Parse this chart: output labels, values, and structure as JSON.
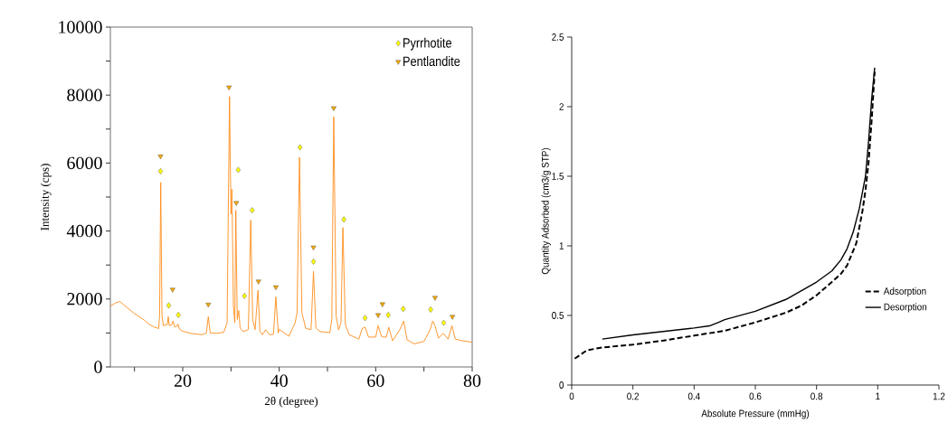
{
  "chart_data": [
    {
      "type": "line",
      "xlabel": "2θ (degree)",
      "ylabel": "Intensity (cps)",
      "xlim": [
        5,
        80
      ],
      "ylim": [
        0,
        10000
      ],
      "xticks": [
        {
          "value": 10,
          "label": null
        },
        20,
        {
          "value": 30,
          "label": null
        },
        40,
        {
          "value": 50,
          "label": null
        },
        60,
        {
          "value": 70,
          "label": null
        },
        80
      ],
      "yticks": [
        0,
        {
          "value": 1000,
          "label": null
        },
        2000,
        {
          "value": 3000,
          "label": null
        },
        4000,
        {
          "value": 5000,
          "label": null
        },
        6000,
        {
          "value": 7000,
          "label": null
        },
        8000,
        {
          "value": 9000,
          "label": null
        },
        10000
      ],
      "grid": false,
      "legend": "top right",
      "series": [
        {
          "type": "line",
          "color": "#ff8c1a",
          "marker": "none",
          "line_style": "solid",
          "x": [
            5,
            6,
            7,
            8,
            10,
            12,
            13,
            14,
            15,
            15.2,
            15.44,
            15.7,
            16,
            16.8,
            17,
            17.2,
            17.7,
            18,
            18.3,
            18.8,
            19,
            19.3,
            20,
            22,
            24,
            24.9,
            25.3,
            25.7,
            27,
            28.5,
            29.2,
            29.7,
            30.0,
            30.2,
            30.5,
            30.8,
            31.0,
            31.3,
            31.6,
            31.9,
            32.5,
            33.6,
            34.1,
            34.5,
            35.0,
            35.6,
            36.0,
            36.5,
            37.2,
            38,
            38.8,
            39.3,
            39.8,
            40,
            42,
            43.3,
            43.7,
            44.2,
            44.7,
            45.5,
            46.6,
            47.1,
            47.6,
            48.5,
            50.5,
            50.9,
            51.3,
            51.8,
            52.3,
            52.8,
            53.2,
            53.7,
            54.5,
            56.5,
            57.2,
            57.8,
            58.5,
            60,
            60.5,
            61.2,
            61.6,
            62.2,
            62.7,
            63.5,
            65,
            65.8,
            66.5,
            68,
            70,
            71.3,
            71.8,
            72.3,
            73,
            74,
            75,
            75.8,
            76.5,
            78,
            80
          ],
          "values": [
            1790,
            1880,
            1925,
            1800,
            1570,
            1380,
            1260,
            1180,
            1130,
            1500,
            5430,
            1500,
            1215,
            1250,
            1480,
            1220,
            1240,
            1350,
            1180,
            1200,
            1260,
            1120,
            1050,
            980,
            950,
            1000,
            1480,
            1000,
            990,
            1020,
            1300,
            7960,
            4500,
            5230,
            1800,
            1300,
            4610,
            1400,
            1660,
            1150,
            1040,
            1100,
            4320,
            1400,
            1100,
            2260,
            1050,
            950,
            1095,
            950,
            960,
            2060,
            1000,
            1110,
            905,
            1300,
            1600,
            6170,
            1600,
            1130,
            1100,
            2810,
            1150,
            1040,
            1010,
            1400,
            7360,
            1500,
            1090,
            1300,
            4100,
            1250,
            950,
            820,
            1130,
            1170,
            880,
            880,
            1215,
            900,
            880,
            880,
            1170,
            770,
            1100,
            1350,
            800,
            680,
            750,
            1100,
            1350,
            1215,
            850,
            990,
            820,
            1215,
            820,
            770,
            730
          ]
        },
        {
          "type": "scatter",
          "name": "Pyrrhotite",
          "color": "#ffff00",
          "marker": "diamond",
          "x": [
            15.4,
            17.1,
            19.1,
            31.5,
            32.8,
            34.4,
            44.3,
            47.1,
            53.4,
            57.8,
            62.6,
            65.7,
            71.4,
            74.1
          ],
          "values": [
            5760,
            1810,
            1530,
            5800,
            2090,
            4610,
            6460,
            3100,
            4340,
            1440,
            1530,
            1710,
            1690,
            1300
          ]
        },
        {
          "type": "scatter",
          "name": "Pentlandite",
          "color": "#f5a800",
          "marker": "triangle",
          "x": [
            15.4,
            17.9,
            25.3,
            29.6,
            31.1,
            35.7,
            39.3,
            47.1,
            51.3,
            60.5,
            61.4,
            72.3,
            75.9
          ],
          "values": [
            6200,
            2280,
            1840,
            8230,
            4830,
            2520,
            2350,
            3520,
            7620,
            1530,
            1850,
            2040,
            1480
          ]
        }
      ]
    },
    {
      "type": "line",
      "xlabel": "Absolute Pressure (mmHg)",
      "ylabel": "Quantity Adsorbed (cm3/g STP)",
      "xlim": [
        0,
        1.2
      ],
      "ylim": [
        0,
        2.5
      ],
      "xticks": [
        0,
        0.2,
        0.4,
        0.6,
        0.8,
        1,
        1.2
      ],
      "yticks": [
        0,
        0.5,
        1,
        1.5,
        2,
        2.5
      ],
      "grid": false,
      "legend": "bottom right",
      "series": [
        {
          "name": "Adsorption",
          "color": "#000000",
          "line_style": "dashed",
          "marker": "none",
          "x": [
            0.01,
            0.03,
            0.05,
            0.1,
            0.2,
            0.3,
            0.4,
            0.5,
            0.6,
            0.7,
            0.75,
            0.8,
            0.85,
            0.88,
            0.9,
            0.93,
            0.95,
            0.96,
            0.97,
            0.98,
            0.99
          ],
          "values": [
            0.19,
            0.22,
            0.25,
            0.27,
            0.29,
            0.32,
            0.355,
            0.39,
            0.45,
            0.52,
            0.57,
            0.645,
            0.74,
            0.8,
            0.86,
            1.02,
            1.25,
            1.4,
            1.6,
            1.9,
            2.25
          ]
        },
        {
          "name": "Desorption",
          "color": "#000000",
          "line_style": "solid",
          "marker": "none",
          "x": [
            0.1,
            0.2,
            0.3,
            0.4,
            0.45,
            0.48,
            0.5,
            0.6,
            0.7,
            0.8,
            0.85,
            0.88,
            0.9,
            0.92,
            0.94,
            0.96,
            0.97,
            0.98,
            0.99
          ],
          "values": [
            0.33,
            0.36,
            0.385,
            0.41,
            0.425,
            0.45,
            0.47,
            0.53,
            0.615,
            0.74,
            0.82,
            0.9,
            0.98,
            1.1,
            1.27,
            1.5,
            1.75,
            2.05,
            2.28
          ]
        }
      ]
    }
  ]
}
